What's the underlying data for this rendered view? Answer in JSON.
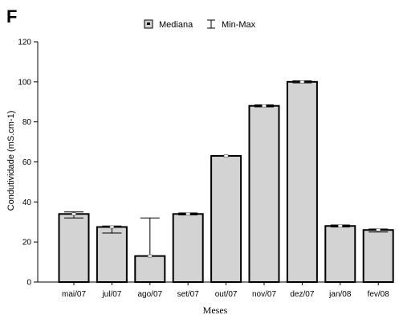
{
  "panel_label": "F",
  "chart_data": {
    "type": "bar",
    "title": "",
    "xlabel": "Meses",
    "ylabel": "Condutividade (mS.cm-1)",
    "ylim": [
      0,
      120
    ],
    "yticks": [
      0,
      20,
      40,
      60,
      80,
      100,
      120
    ],
    "grid": false,
    "legend_position": "top",
    "legend": [
      {
        "name": "Mediana",
        "marker": "box"
      },
      {
        "name": "Min-Max",
        "marker": "whisker"
      }
    ],
    "categories": [
      "mai/07",
      "jul/07",
      "ago/07",
      "set/07",
      "out/07",
      "nov/07",
      "dez/07",
      "jan/08",
      "fev/08"
    ],
    "series": [
      {
        "name": "Mediana",
        "values": [
          34,
          27.5,
          13,
          34,
          63,
          88,
          100,
          28,
          26
        ],
        "min": [
          32,
          24.5,
          13,
          33.5,
          62.5,
          87.5,
          99.5,
          27.5,
          25
        ],
        "max": [
          35,
          28,
          32,
          34.5,
          63,
          88.5,
          100.5,
          28.5,
          26.5
        ]
      }
    ],
    "colors": {
      "bar_fill": "#d3d3d3",
      "bar_stroke": "#000000",
      "axis": "#000000"
    }
  }
}
